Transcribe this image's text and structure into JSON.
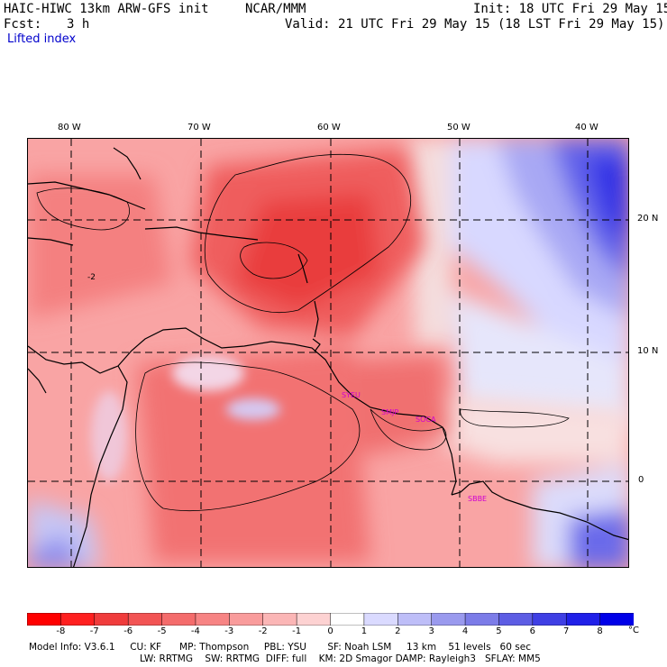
{
  "header": {
    "title_left": "HAIC-HIWC 13km ARW-GFS init",
    "org": "NCAR/MMM",
    "init": "Init: 18 UTC Fri 29 May 15",
    "fcst_label": "Fcst:",
    "fcst_value": "3 h",
    "valid": "Valid: 21 UTC Fri 29 May 15 (18 LST Fri 29 May 15)",
    "field": "Lifted index"
  },
  "map": {
    "lon_labels": [
      "80 W",
      "70 W",
      "60 W",
      "50 W",
      "40 W"
    ],
    "lat_labels": [
      "20 N",
      "10 N",
      "0"
    ],
    "stations": [
      "SYEU",
      "SMJP",
      "SOCA",
      "SBBE"
    ],
    "contour_labels": [
      "-2"
    ]
  },
  "colorbar": {
    "unit": "°C",
    "labels": [
      "-8",
      "-7",
      "-6",
      "-5",
      "-4",
      "-3",
      "-2",
      "-1",
      "0",
      "1",
      "2",
      "3",
      "4",
      "5",
      "6",
      "7",
      "8"
    ],
    "colors": [
      "#ff0000",
      "#ff2020",
      "#f03c3c",
      "#f25454",
      "#f46c6c",
      "#f78484",
      "#f99c9c",
      "#fbb6b6",
      "#fdd2d2",
      "#ffffff",
      "#dadaff",
      "#bebef8",
      "#9a9aee",
      "#7c7ce8",
      "#5d5de4",
      "#3f3fe4",
      "#2020e8",
      "#0000e8"
    ],
    "color_scale": {
      "negative": "#ff0000",
      "neutral": "#ffffff",
      "positive": "#0000e8"
    }
  },
  "footer": {
    "line1": "Model Info: V3.6.1     CU: KF      MP: Thompson     PBL: YSU       SF: Noah LSM     13 km    51 levels   60 sec",
    "line2": "LW: RRTMG    SW: RRTMG  DIFF: full    KM: 2D Smagor DAMP: Rayleigh3   SFLAY: MM5"
  }
}
